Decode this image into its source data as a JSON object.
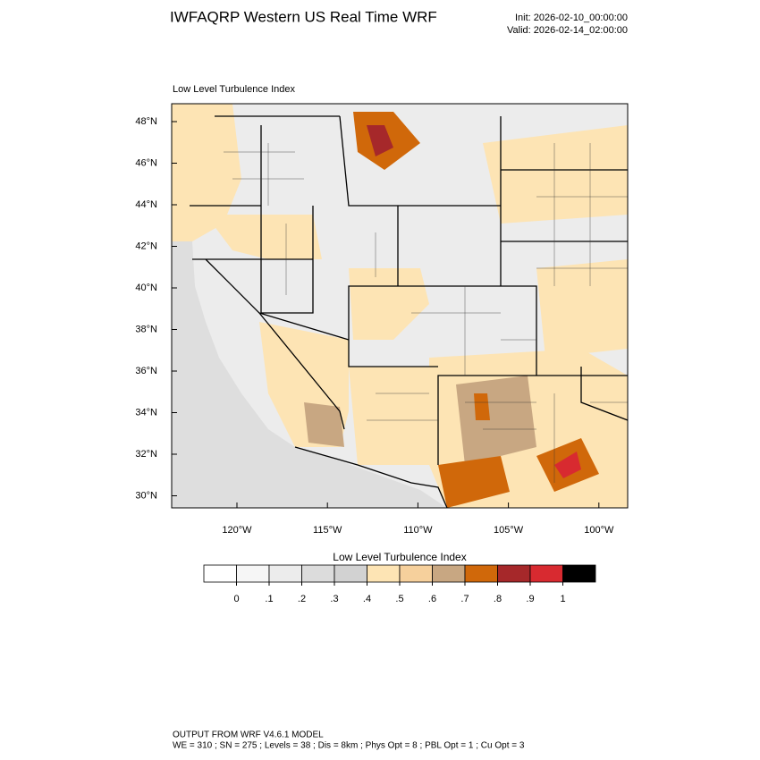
{
  "header": {
    "title": "IWFAQRP Western US Real Time WRF",
    "init": "Init: 2026-02-10_00:00:00",
    "valid": "Valid: 2026-02-14_02:00:00"
  },
  "map": {
    "title": "Low Level Turbulence Index",
    "lat_labels": [
      "48°N",
      "46°N",
      "44°N",
      "42°N",
      "40°N",
      "38°N",
      "36°N",
      "34°N",
      "32°N",
      "30°N"
    ],
    "lon_labels": [
      "120°W",
      "115°W",
      "110°W",
      "105°W",
      "100°W"
    ]
  },
  "colorbar": {
    "title": "Low Level Turbulence Index",
    "colors": [
      "#ffffff",
      "#f6f6f6",
      "#ececec",
      "#dcdcdc",
      "#d2d2d2",
      "#fde4b4",
      "#f6d09c",
      "#c8a782",
      "#d0680a",
      "#a6282a",
      "#d82a30",
      "#000000"
    ],
    "ticks": [
      0,
      {
        "value": 0.1,
        "label": ".1"
      },
      {
        "value": 0.2,
        "label": ".2"
      },
      {
        "value": 0.3,
        "label": ".3"
      },
      {
        "value": 0.4,
        "label": ".4"
      },
      {
        "value": 0.5,
        "label": ".5"
      },
      {
        "value": 0.6,
        "label": ".6"
      },
      {
        "value": 0.7,
        "label": ".7"
      },
      {
        "value": 0.8,
        "label": ".8"
      },
      {
        "value": 0.9,
        "label": ".9"
      },
      1
    ]
  },
  "footer": {
    "line1": "OUTPUT FROM WRF V4.6.1 MODEL",
    "line2": "WE = 310 ; SN = 275 ; Levels = 38 ; Dis = 8km ; Phys Opt = 8 ; PBL Opt = 1 ; Cu Opt = 3"
  }
}
